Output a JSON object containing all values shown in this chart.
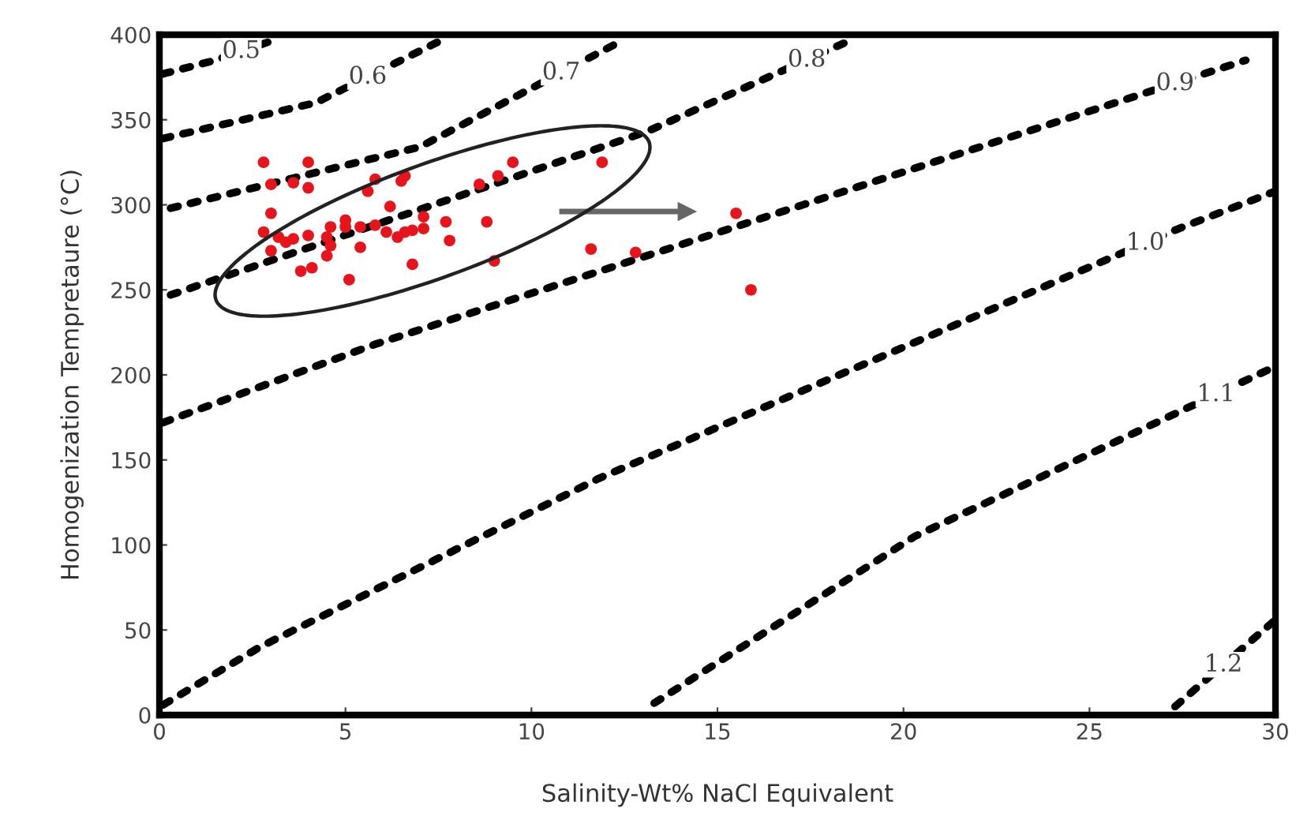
{
  "chart_data": {
    "type": "scatter",
    "xlabel": "Salinity-Wt% NaCl Equivalent",
    "ylabel": "Homogenization Tempretaure (°C)",
    "xlim": [
      0,
      30
    ],
    "xticks": [
      0,
      5,
      10,
      15,
      20,
      25,
      30
    ],
    "ylim": [
      0,
      400
    ],
    "yticks": [
      0,
      50,
      100,
      150,
      200,
      250,
      300,
      350,
      400
    ],
    "grid": false,
    "legend": false,
    "series": [
      {
        "color": "#e8141b",
        "marker": "circle",
        "x": [
          2.8,
          4.0,
          3.0,
          3.6,
          4.0,
          3.0,
          5.8,
          5.6,
          6.5,
          6.6,
          6.2,
          2.8,
          3.2,
          3.6,
          4.0,
          4.5,
          4.6,
          5.0,
          5.0,
          5.4,
          5.8,
          6.1,
          6.4,
          6.6,
          6.8,
          7.1,
          7.1,
          7.7,
          7.8,
          8.8,
          8.6,
          9.1,
          9.5,
          11.9,
          3.0,
          3.4,
          3.8,
          4.1,
          4.5,
          4.6,
          5.4,
          5.1,
          6.8,
          9.0,
          11.6,
          12.8,
          15.5,
          15.9
        ],
        "values": [
          325,
          325,
          312,
          313,
          310,
          295,
          315,
          308,
          314,
          317,
          299,
          284,
          281,
          280,
          282,
          281,
          287,
          291,
          287,
          287,
          288,
          284,
          281,
          284,
          285,
          286,
          293,
          290,
          279,
          290,
          312,
          317,
          325,
          325,
          273,
          278,
          261,
          263,
          270,
          276,
          275,
          256,
          265,
          267,
          274,
          272,
          295,
          250
        ]
      },
      {
        "type": "line",
        "color": "#000000",
        "line_style": "dotted",
        "marker": "none",
        "x": [
          0.1,
          1.5,
          3.1
        ],
        "values": [
          377,
          385,
          397
        ]
      },
      {
        "type": "line",
        "color": "#000000",
        "line_style": "dotted",
        "marker": "none",
        "x": [
          0.1,
          4.2,
          7.6
        ],
        "values": [
          339,
          360,
          397
        ]
      },
      {
        "type": "line",
        "color": "#000000",
        "line_style": "dotted",
        "marker": "none",
        "x": [
          0.3,
          7.0,
          12.3
        ],
        "values": [
          298,
          334,
          395
        ]
      },
      {
        "type": "line",
        "color": "#000000",
        "line_style": "dotted",
        "marker": "none",
        "x": [
          0.3,
          13.1,
          18.6
        ],
        "values": [
          247,
          343,
          397
        ]
      },
      {
        "type": "line",
        "color": "#000000",
        "line_style": "dotted",
        "marker": "none",
        "x": [
          0.1,
          5.8,
          17.3,
          29.2
        ],
        "values": [
          172,
          218,
          300,
          385
        ]
      },
      {
        "type": "line",
        "color": "#000000",
        "line_style": "dotted",
        "marker": "none",
        "x": [
          0.1,
          2.7,
          11.8,
          27.4,
          30
        ],
        "values": [
          6,
          40,
          139,
          286,
          308
        ]
      },
      {
        "type": "line",
        "color": "#000000",
        "line_style": "dotted",
        "marker": "none",
        "x": [
          13.3,
          20.3,
          30
        ],
        "values": [
          7,
          105,
          205
        ]
      },
      {
        "type": "line",
        "color": "#000000",
        "line_style": "dotted",
        "marker": "none",
        "x": [
          27.3,
          30
        ],
        "values": [
          5,
          56
        ]
      }
    ],
    "annotations": [
      {
        "text": "0.5",
        "x": 2.2,
        "y": 390.3
      },
      {
        "text": "0.6",
        "x": 5.6,
        "y": 375.2
      },
      {
        "text": "0.7",
        "x": 10.8,
        "y": 377.7
      },
      {
        "text": "0.8",
        "x": 17.4,
        "y": 385.2
      },
      {
        "text": "0.9",
        "x": 27.3,
        "y": 371.4
      },
      {
        "text": "1.0",
        "x": 26.5,
        "y": 277.5
      },
      {
        "text": "1.1",
        "x": 28.4,
        "y": 188.5
      },
      {
        "text": "1.2",
        "x": 28.6,
        "y": 29.6
      }
    ]
  }
}
